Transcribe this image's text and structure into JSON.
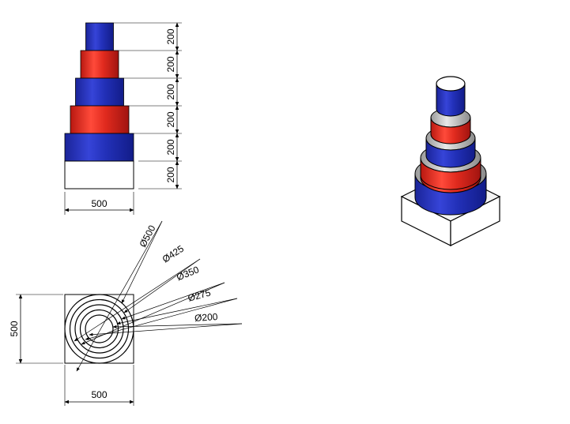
{
  "front_view": {
    "tiers": [
      {
        "diameter": 200,
        "height": 200,
        "color_name": "blue"
      },
      {
        "diameter": 275,
        "height": 200,
        "color_name": "red"
      },
      {
        "diameter": 350,
        "height": 200,
        "color_name": "blue"
      },
      {
        "diameter": 425,
        "height": 200,
        "color_name": "red"
      },
      {
        "diameter": 500,
        "height": 200,
        "color_name": "blue"
      }
    ],
    "base": {
      "width": 500,
      "height": 200
    },
    "height_labels": [
      "200",
      "200",
      "200",
      "200",
      "200",
      "200"
    ],
    "width_label": "500"
  },
  "top_view": {
    "diameter_labels": [
      "Ø500",
      "Ø425",
      "Ø350",
      "Ø275",
      "Ø200"
    ],
    "width_label": "500",
    "height_label": "500"
  },
  "colors": {
    "blue": "#2a36c4",
    "blue_dark": "#101a8a",
    "blue_light": "#5a66e8",
    "red": "#e0281e",
    "red_dark": "#9a1010",
    "red_light": "#ff6a5a",
    "base": "#ffffff",
    "line": "#000000"
  }
}
